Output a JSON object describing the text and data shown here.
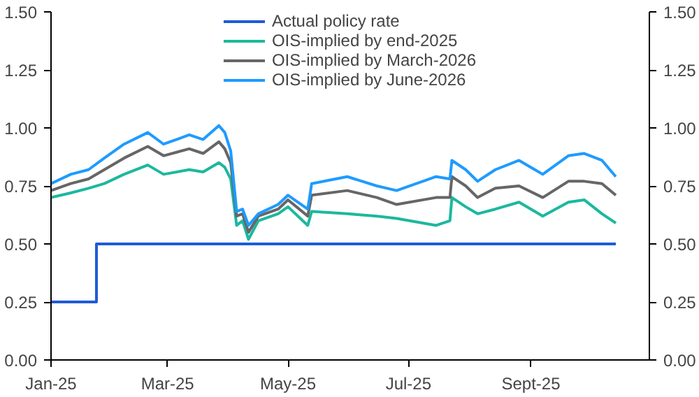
{
  "chart_data": {
    "type": "line",
    "x": [
      "2025-01-01",
      "2025-01-11",
      "2025-01-20",
      "2025-01-28",
      "2025-02-07",
      "2025-02-19",
      "2025-02-27",
      "2025-03-12",
      "2025-03-19",
      "2025-03-27",
      "2025-03-30",
      "2025-04-02",
      "2025-04-05",
      "2025-04-08",
      "2025-04-11",
      "2025-04-16",
      "2025-04-26",
      "2025-05-01",
      "2025-05-11",
      "2025-05-13",
      "2025-05-31",
      "2025-06-15",
      "2025-06-25",
      "2025-07-15",
      "2025-07-22",
      "2025-07-23",
      "2025-07-30",
      "2025-08-05",
      "2025-08-14",
      "2025-08-26",
      "2025-09-07",
      "2025-09-20",
      "2025-09-28",
      "2025-10-07",
      "2025-10-14"
    ],
    "series": [
      {
        "name": "Actual policy rate",
        "color": "#1f5bd6",
        "type": "step",
        "x": [
          "2025-01-01",
          "2025-01-24",
          "2025-10-14"
        ],
        "values": [
          0.25,
          0.5,
          0.5
        ]
      },
      {
        "name": "OIS-implied by end-2025",
        "color": "#1cb89e",
        "values": [
          0.7,
          0.72,
          0.74,
          0.76,
          0.8,
          0.84,
          0.8,
          0.82,
          0.81,
          0.85,
          0.83,
          0.78,
          0.58,
          0.6,
          0.52,
          0.6,
          0.63,
          0.66,
          0.58,
          0.64,
          0.63,
          0.62,
          0.61,
          0.58,
          0.6,
          0.7,
          0.66,
          0.63,
          0.65,
          0.68,
          0.62,
          0.68,
          0.69,
          0.63,
          0.59
        ]
      },
      {
        "name": "OIS-implied by March-2026",
        "color": "#666666",
        "values": [
          0.73,
          0.76,
          0.78,
          0.82,
          0.87,
          0.92,
          0.88,
          0.91,
          0.89,
          0.94,
          0.91,
          0.85,
          0.62,
          0.63,
          0.55,
          0.62,
          0.65,
          0.69,
          0.62,
          0.71,
          0.73,
          0.7,
          0.67,
          0.7,
          0.7,
          0.79,
          0.75,
          0.7,
          0.74,
          0.75,
          0.7,
          0.77,
          0.77,
          0.76,
          0.71
        ]
      },
      {
        "name": "OIS-implied by June-2026",
        "color": "#1e9bff",
        "values": [
          0.76,
          0.8,
          0.82,
          0.87,
          0.93,
          0.98,
          0.93,
          0.97,
          0.95,
          1.01,
          0.98,
          0.9,
          0.64,
          0.65,
          0.58,
          0.63,
          0.67,
          0.71,
          0.65,
          0.76,
          0.79,
          0.75,
          0.73,
          0.79,
          0.78,
          0.86,
          0.82,
          0.77,
          0.82,
          0.86,
          0.8,
          0.88,
          0.89,
          0.86,
          0.79
        ]
      }
    ],
    "xlim": [
      "2025-01-01",
      "2025-10-31"
    ],
    "xticks": [
      {
        "value": "2025-01-01",
        "label": "Jan-25"
      },
      {
        "value": "2025-03-01",
        "label": "Mar-25"
      },
      {
        "value": "2025-05-01",
        "label": "May-25"
      },
      {
        "value": "2025-07-01",
        "label": "Jul-25"
      },
      {
        "value": "2025-09-01",
        "label": "Sept-25"
      }
    ],
    "ylim": [
      0,
      1.5
    ],
    "yticks": [
      {
        "value": 0,
        "label": "0.00"
      },
      {
        "value": 0.25,
        "label": "0.25"
      },
      {
        "value": 0.5,
        "label": "0.50"
      },
      {
        "value": 0.75,
        "label": "0.75"
      },
      {
        "value": 1.0,
        "label": "1.00"
      },
      {
        "value": 1.25,
        "label": "1.25"
      },
      {
        "value": 1.5,
        "label": "1.50"
      }
    ],
    "y2lim": [
      0,
      1.5
    ],
    "y2ticks": [
      {
        "value": 0,
        "label": "0.00"
      },
      {
        "value": 0.25,
        "label": "0.25"
      },
      {
        "value": 0.5,
        "label": "0.50"
      },
      {
        "value": 0.75,
        "label": "0.75"
      },
      {
        "value": 1.0,
        "label": "1.00"
      },
      {
        "value": 1.25,
        "label": "1.25"
      },
      {
        "value": 1.5,
        "label": "1.50"
      }
    ],
    "grid": false,
    "legend": "top",
    "line_style": "solid"
  }
}
